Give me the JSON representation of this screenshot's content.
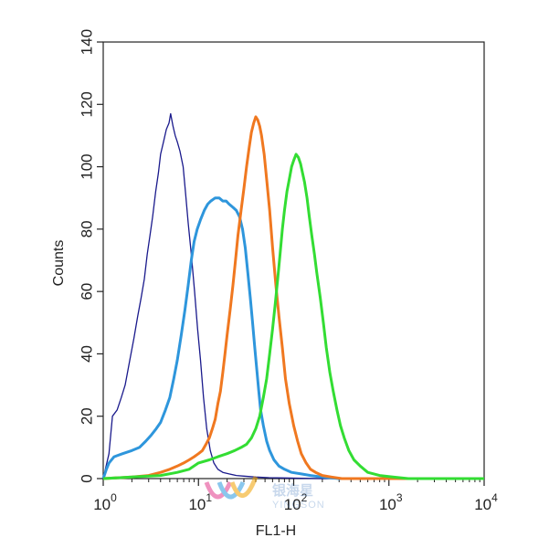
{
  "chart_data": {
    "type": "line",
    "title": "",
    "xlabel": "FL1-H",
    "ylabel": "Counts",
    "x_scale": "log",
    "xlim": [
      1,
      10000
    ],
    "ylim": [
      0,
      140
    ],
    "y_ticks": [
      0,
      20,
      40,
      60,
      80,
      100,
      120,
      140
    ],
    "x_ticks": [
      {
        "value": 1,
        "base": "10",
        "exp": "0"
      },
      {
        "value": 10,
        "base": "10",
        "exp": "1"
      },
      {
        "value": 100,
        "base": "10",
        "exp": "2"
      },
      {
        "value": 1000,
        "base": "10",
        "exp": "3"
      },
      {
        "value": 10000,
        "base": "10",
        "exp": "4"
      }
    ],
    "grid": false,
    "legend": "none",
    "series": [
      {
        "color": "#1a1a8c",
        "line_width": 1.3,
        "points": [
          [
            1,
            0
          ],
          [
            1.15,
            8
          ],
          [
            1.25,
            20
          ],
          [
            1.4,
            22
          ],
          [
            1.55,
            26
          ],
          [
            1.7,
            30
          ],
          [
            1.9,
            38
          ],
          [
            2.1,
            45
          ],
          [
            2.3,
            52
          ],
          [
            2.5,
            58
          ],
          [
            2.7,
            64
          ],
          [
            2.9,
            72
          ],
          [
            3.1,
            78
          ],
          [
            3.3,
            84
          ],
          [
            3.55,
            92
          ],
          [
            3.8,
            98
          ],
          [
            4.0,
            104
          ],
          [
            4.3,
            108
          ],
          [
            4.6,
            112
          ],
          [
            4.9,
            114
          ],
          [
            5.1,
            117
          ],
          [
            5.4,
            113
          ],
          [
            5.7,
            110
          ],
          [
            6.0,
            108
          ],
          [
            6.4,
            105
          ],
          [
            6.9,
            100
          ],
          [
            7.3,
            92
          ],
          [
            7.8,
            82
          ],
          [
            8.4,
            72
          ],
          [
            9.1,
            60
          ],
          [
            9.8,
            48
          ],
          [
            10.5,
            38
          ],
          [
            11.3,
            26
          ],
          [
            12.2,
            16
          ],
          [
            13.3,
            9
          ],
          [
            14.5,
            5
          ],
          [
            16,
            3
          ],
          [
            18,
            2
          ],
          [
            21,
            1.5
          ],
          [
            25,
            1
          ],
          [
            30,
            0.8
          ],
          [
            40,
            0.5
          ],
          [
            55,
            0.3
          ],
          [
            80,
            0.2
          ],
          [
            120,
            0.1
          ],
          [
            200,
            0
          ],
          [
            10000,
            0
          ]
        ]
      },
      {
        "color": "#2e96dc",
        "line_width": 3,
        "points": [
          [
            1,
            0
          ],
          [
            1.08,
            3
          ],
          [
            1.15,
            5
          ],
          [
            1.3,
            7
          ],
          [
            1.6,
            8
          ],
          [
            2,
            9
          ],
          [
            2.4,
            10
          ],
          [
            2.8,
            12
          ],
          [
            3.2,
            14
          ],
          [
            3.6,
            16
          ],
          [
            4.0,
            18
          ],
          [
            4.5,
            22
          ],
          [
            5.0,
            26
          ],
          [
            5.5,
            32
          ],
          [
            6.0,
            38
          ],
          [
            6.6,
            46
          ],
          [
            7.2,
            54
          ],
          [
            7.8,
            62
          ],
          [
            8.4,
            70
          ],
          [
            9.0,
            76
          ],
          [
            9.7,
            80
          ],
          [
            10.5,
            83
          ],
          [
            11.5,
            86
          ],
          [
            12.5,
            88
          ],
          [
            13.5,
            89
          ],
          [
            15,
            90
          ],
          [
            16.5,
            90
          ],
          [
            18,
            89
          ],
          [
            19.5,
            89
          ],
          [
            21,
            88
          ],
          [
            23,
            87
          ],
          [
            25,
            86
          ],
          [
            27,
            84
          ],
          [
            29,
            80
          ],
          [
            31,
            74
          ],
          [
            33,
            66
          ],
          [
            35,
            58
          ],
          [
            37,
            50
          ],
          [
            39,
            42
          ],
          [
            41,
            35
          ],
          [
            43,
            28
          ],
          [
            45,
            22
          ],
          [
            48,
            17
          ],
          [
            52,
            12
          ],
          [
            56,
            9
          ],
          [
            62,
            6
          ],
          [
            70,
            4
          ],
          [
            80,
            3
          ],
          [
            95,
            2
          ],
          [
            120,
            1.5
          ],
          [
            150,
            1
          ],
          [
            200,
            0.5
          ],
          [
            300,
            0
          ],
          [
            10000,
            0
          ]
        ]
      },
      {
        "color": "#f07820",
        "line_width": 3,
        "points": [
          [
            1,
            0
          ],
          [
            2,
            0.5
          ],
          [
            3,
            1
          ],
          [
            4,
            2
          ],
          [
            5,
            3
          ],
          [
            6,
            4
          ],
          [
            7,
            5
          ],
          [
            8,
            6
          ],
          [
            9,
            7
          ],
          [
            10,
            8
          ],
          [
            11,
            9
          ],
          [
            12,
            11
          ],
          [
            13,
            13
          ],
          [
            14,
            16
          ],
          [
            15,
            19
          ],
          [
            16,
            24
          ],
          [
            17,
            28
          ],
          [
            18,
            34
          ],
          [
            19,
            40
          ],
          [
            20,
            46
          ],
          [
            21.5,
            54
          ],
          [
            23,
            62
          ],
          [
            24.5,
            70
          ],
          [
            26,
            78
          ],
          [
            28,
            86
          ],
          [
            30,
            93
          ],
          [
            32,
            100
          ],
          [
            34,
            106
          ],
          [
            36,
            111
          ],
          [
            38,
            114
          ],
          [
            40,
            116
          ],
          [
            42,
            115
          ],
          [
            44,
            113
          ],
          [
            46,
            110
          ],
          [
            49,
            104
          ],
          [
            52,
            96
          ],
          [
            56,
            86
          ],
          [
            60,
            74
          ],
          [
            65,
            62
          ],
          [
            70,
            52
          ],
          [
            76,
            42
          ],
          [
            82,
            32
          ],
          [
            90,
            24
          ],
          [
            100,
            17
          ],
          [
            110,
            12
          ],
          [
            120,
            8
          ],
          [
            135,
            5
          ],
          [
            150,
            3
          ],
          [
            170,
            2
          ],
          [
            200,
            1
          ],
          [
            250,
            0.5
          ],
          [
            320,
            0
          ],
          [
            10000,
            0
          ]
        ]
      },
      {
        "color": "#33dd33",
        "line_width": 3,
        "points": [
          [
            1,
            0
          ],
          [
            2,
            0.5
          ],
          [
            4,
            1
          ],
          [
            6,
            2
          ],
          [
            8,
            3
          ],
          [
            10,
            5
          ],
          [
            13,
            6
          ],
          [
            16,
            7
          ],
          [
            20,
            8
          ],
          [
            24,
            9
          ],
          [
            28,
            10
          ],
          [
            32,
            11
          ],
          [
            36,
            13
          ],
          [
            40,
            16
          ],
          [
            44,
            20
          ],
          [
            48,
            26
          ],
          [
            52,
            32
          ],
          [
            56,
            40
          ],
          [
            60,
            48
          ],
          [
            64,
            56
          ],
          [
            68,
            64
          ],
          [
            72,
            72
          ],
          [
            76,
            80
          ],
          [
            80,
            86
          ],
          [
            85,
            92
          ],
          [
            90,
            96
          ],
          [
            95,
            100
          ],
          [
            100,
            102
          ],
          [
            106,
            104
          ],
          [
            112,
            103
          ],
          [
            118,
            101
          ],
          [
            124,
            98
          ],
          [
            130,
            95
          ],
          [
            138,
            90
          ],
          [
            146,
            84
          ],
          [
            155,
            78
          ],
          [
            165,
            72
          ],
          [
            175,
            66
          ],
          [
            190,
            58
          ],
          [
            205,
            50
          ],
          [
            220,
            42
          ],
          [
            240,
            34
          ],
          [
            260,
            28
          ],
          [
            285,
            22
          ],
          [
            310,
            17
          ],
          [
            340,
            13
          ],
          [
            380,
            9
          ],
          [
            430,
            6
          ],
          [
            500,
            4
          ],
          [
            600,
            2
          ],
          [
            800,
            1
          ],
          [
            1100,
            0.5
          ],
          [
            1600,
            0
          ],
          [
            10000,
            0
          ]
        ]
      }
    ]
  },
  "watermark": {
    "cn_text": "银海星",
    "en_text": "YINGSON",
    "colors": [
      "#e23a8c",
      "#2b9be0",
      "#f2a200"
    ]
  }
}
